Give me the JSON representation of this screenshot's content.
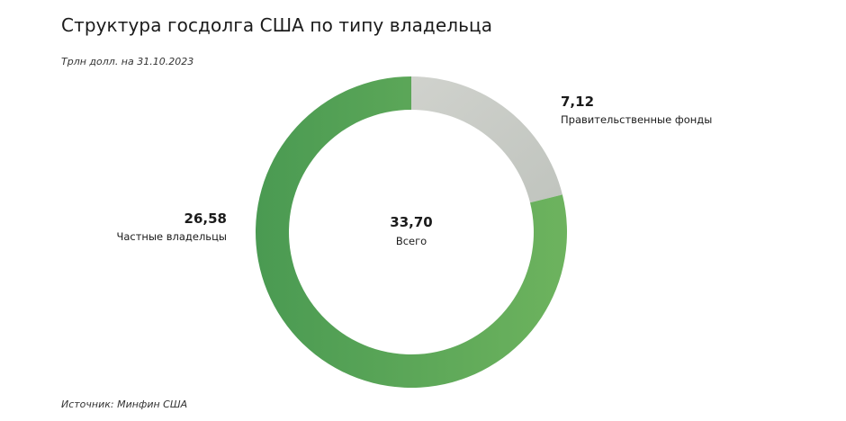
{
  "header": {
    "title": "Структура госдолга США по типу владельца",
    "subtitle": "Трлн долл. на 31.10.2023"
  },
  "footer": {
    "source": "Источник: Минфин США"
  },
  "colors": {
    "private_start": "#4a9a52",
    "private_end": "#6db35e",
    "government_start": "#d0d2cd",
    "government_end": "#c0c4be"
  },
  "chart_data": {
    "type": "pie",
    "variant": "donut",
    "unit": "Трлн долл.",
    "total": {
      "value": "33,70",
      "label": "Всего"
    },
    "slices": [
      {
        "name": "Правительственные фонды",
        "value": 7.12,
        "display": "7,12",
        "color_key": "government"
      },
      {
        "name": "Частные владельцы",
        "value": 26.58,
        "display": "26,58",
        "color_key": "private"
      }
    ],
    "start_angle": "12 o'clock",
    "direction": "clockwise"
  }
}
